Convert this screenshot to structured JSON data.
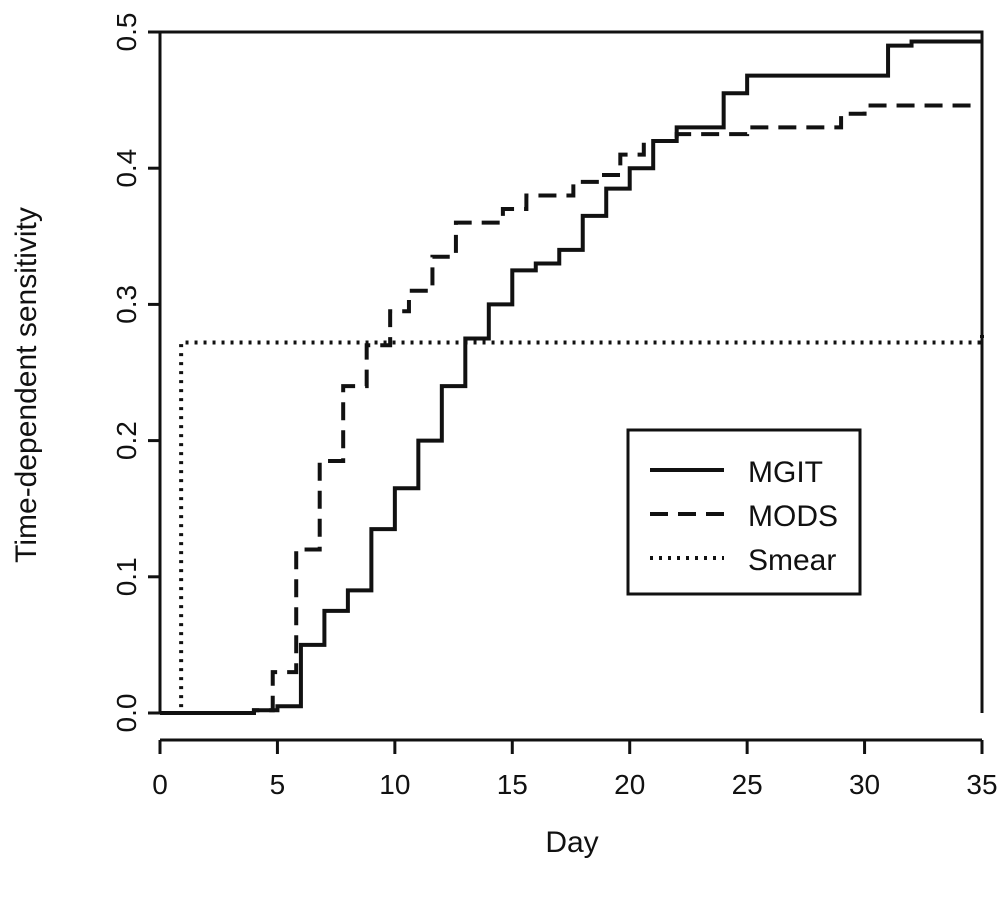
{
  "chart_data": {
    "type": "line",
    "step": true,
    "title": "",
    "xlabel": "Day",
    "ylabel": "Time-dependent sensitivity",
    "xlim": [
      0,
      35
    ],
    "ylim": [
      0,
      0.5
    ],
    "xticks": [
      0,
      5,
      10,
      15,
      20,
      25,
      30,
      35
    ],
    "yticks": [
      0.0,
      0.1,
      0.2,
      0.3,
      0.4,
      0.5
    ],
    "xtick_labels": [
      "0",
      "5",
      "10",
      "15",
      "20",
      "25",
      "30",
      "35"
    ],
    "ytick_labels": [
      "0.0",
      "0.1",
      "0.2",
      "0.3",
      "0.4",
      "0.5"
    ],
    "grid": false,
    "legend": {
      "placement": "right-center",
      "entries": [
        "MGIT",
        "MODS",
        "Smear"
      ]
    },
    "series": [
      {
        "name": "MGIT",
        "dash": "solid",
        "x": [
          0,
          4,
          5,
          6,
          7,
          8,
          9,
          10,
          11,
          12,
          13,
          14,
          15,
          16,
          17,
          18,
          19,
          20,
          21,
          22,
          24,
          25,
          31,
          32,
          35
        ],
        "y": [
          0.0,
          0.002,
          0.005,
          0.05,
          0.075,
          0.09,
          0.135,
          0.165,
          0.2,
          0.24,
          0.275,
          0.3,
          0.325,
          0.33,
          0.34,
          0.365,
          0.385,
          0.4,
          0.42,
          0.43,
          0.455,
          0.468,
          0.49,
          0.493,
          0.493
        ]
      },
      {
        "name": "MODS",
        "dash": "dashed",
        "x": [
          0,
          4,
          4.8,
          5.8,
          6.8,
          7.8,
          8.8,
          9.8,
          10.6,
          11.6,
          12.6,
          14.6,
          15.6,
          17.6,
          18.6,
          19.6,
          20.6,
          22,
          25,
          29,
          30,
          35
        ],
        "y": [
          0.0,
          0.002,
          0.03,
          0.12,
          0.185,
          0.24,
          0.27,
          0.295,
          0.31,
          0.335,
          0.36,
          0.37,
          0.38,
          0.39,
          0.395,
          0.41,
          0.42,
          0.425,
          0.43,
          0.44,
          0.446,
          0.446
        ]
      },
      {
        "name": "Smear",
        "dash": "dotted",
        "x": [
          0,
          0.9,
          35
        ],
        "y": [
          0.0,
          0.272,
          0.278
        ]
      }
    ]
  }
}
